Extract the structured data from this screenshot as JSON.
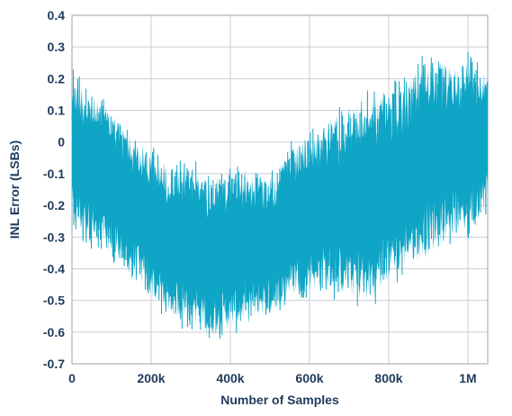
{
  "chart_data": {
    "type": "line",
    "title": "",
    "xlabel": "Number of Samples",
    "ylabel": "INL Error (LSBs)",
    "xlim": [
      0,
      1050000
    ],
    "ylim": [
      -0.7,
      0.4
    ],
    "grid": true,
    "x_ticks": [
      {
        "value": 0,
        "label": "0"
      },
      {
        "value": 200000,
        "label": "200k"
      },
      {
        "value": 400000,
        "label": "400k"
      },
      {
        "value": 600000,
        "label": "600k"
      },
      {
        "value": 800000,
        "label": "800k"
      },
      {
        "value": 1000000,
        "label": "1M"
      }
    ],
    "y_ticks": [
      {
        "value": 0.4,
        "label": "0.4"
      },
      {
        "value": 0.3,
        "label": "0.3"
      },
      {
        "value": 0.2,
        "label": "0.2"
      },
      {
        "value": 0.1,
        "label": "0.1"
      },
      {
        "value": 0,
        "label": "0"
      },
      {
        "value": -0.1,
        "label": "-0.1"
      },
      {
        "value": -0.2,
        "label": "-0.2"
      },
      {
        "value": -0.3,
        "label": "-0.3"
      },
      {
        "value": -0.4,
        "label": "-0.4"
      },
      {
        "value": -0.5,
        "label": "-0.5"
      },
      {
        "value": -0.6,
        "label": "-0.6"
      },
      {
        "value": -0.7,
        "label": "-0.7"
      }
    ],
    "series": [
      {
        "color": "#0ea5c6",
        "x": [
          0,
          50000,
          100000,
          150000,
          200000,
          250000,
          300000,
          350000,
          400000,
          450000,
          500000,
          550000,
          600000,
          650000,
          700000,
          750000,
          800000,
          850000,
          900000,
          950000,
          1000000,
          1050000
        ],
        "upper": [
          0.25,
          0.18,
          0.13,
          0.05,
          0.0,
          -0.05,
          -0.05,
          -0.08,
          -0.07,
          -0.05,
          -0.08,
          0.0,
          0.05,
          0.1,
          0.15,
          0.18,
          0.2,
          0.22,
          0.32,
          0.27,
          0.3,
          0.25
        ],
        "lower": [
          -0.3,
          -0.35,
          -0.38,
          -0.45,
          -0.52,
          -0.58,
          -0.6,
          -0.65,
          -0.62,
          -0.6,
          -0.57,
          -0.52,
          -0.5,
          -0.5,
          -0.53,
          -0.55,
          -0.48,
          -0.42,
          -0.4,
          -0.33,
          -0.32,
          -0.23
        ],
        "center": [
          -0.1,
          -0.12,
          -0.15,
          -0.2,
          -0.25,
          -0.3,
          -0.33,
          -0.35,
          -0.35,
          -0.33,
          -0.3,
          -0.25,
          -0.22,
          -0.18,
          -0.17,
          -0.17,
          -0.13,
          -0.1,
          -0.05,
          -0.03,
          -0.02,
          0.0
        ]
      }
    ]
  }
}
